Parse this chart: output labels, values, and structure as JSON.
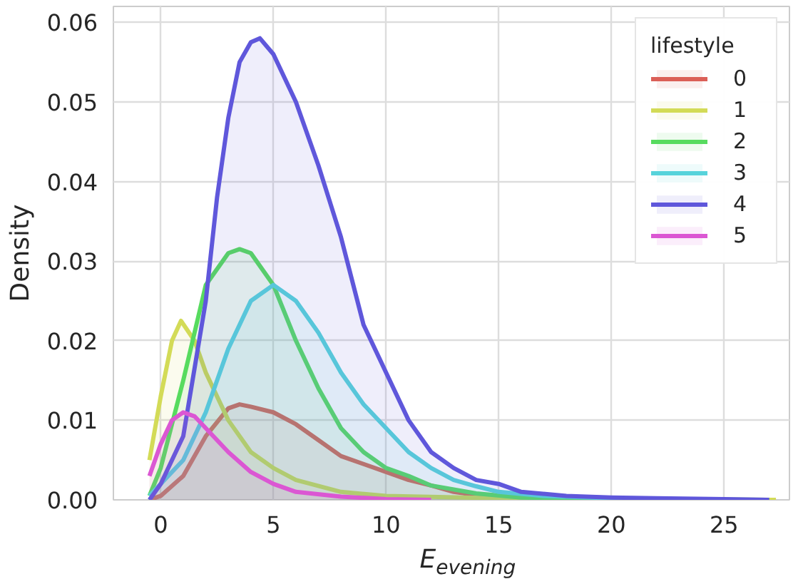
{
  "chart_data": {
    "type": "area",
    "xlabel": "E$_{evening}$",
    "ylabel": "Density",
    "legend_title": "lifestyle",
    "xlim": [
      -2.1,
      27.9
    ],
    "ylim": [
      0,
      0.062
    ],
    "xticks": [
      0,
      5,
      10,
      15,
      20,
      25
    ],
    "yticks": [
      {
        "value": 0,
        "label": "0.00"
      },
      0.01,
      0.02,
      0.03,
      0.04,
      0.05,
      0.06
    ],
    "grid": true,
    "legend": "top right",
    "series": [
      {
        "name": "0",
        "color": "#db5f57",
        "x": [
          -0.5,
          0,
          1,
          2,
          3,
          3.5,
          4,
          5,
          6,
          7,
          8,
          9,
          10,
          11,
          12,
          13,
          14,
          16,
          20,
          25
        ],
        "values": [
          0,
          0.0005,
          0.003,
          0.008,
          0.0115,
          0.012,
          0.0117,
          0.011,
          0.0095,
          0.0075,
          0.0055,
          0.0045,
          0.0035,
          0.0025,
          0.0018,
          0.001,
          0.0006,
          0.0002,
          0.0001,
          0
        ]
      },
      {
        "name": "1",
        "color": "#d3db57",
        "x": [
          -0.5,
          0,
          0.5,
          0.9,
          1.5,
          2,
          3,
          4,
          5,
          6,
          8,
          10,
          15,
          20,
          27.3
        ],
        "values": [
          0.005,
          0.013,
          0.02,
          0.0225,
          0.02,
          0.016,
          0.01,
          0.006,
          0.004,
          0.0025,
          0.001,
          0.0005,
          0.0002,
          0.0001,
          0
        ]
      },
      {
        "name": "2",
        "color": "#57db5f",
        "x": [
          -0.5,
          0,
          1,
          2,
          3,
          3.5,
          4,
          5,
          6,
          7,
          8,
          9,
          10,
          11,
          12,
          14,
          16,
          20,
          27
        ],
        "values": [
          0.0005,
          0.004,
          0.015,
          0.027,
          0.031,
          0.0315,
          0.031,
          0.027,
          0.02,
          0.014,
          0.009,
          0.006,
          0.004,
          0.003,
          0.0018,
          0.0008,
          0.0003,
          0.0001,
          0
        ]
      },
      {
        "name": "3",
        "color": "#57d3db",
        "x": [
          -0.5,
          0,
          1,
          2,
          3,
          4,
          5,
          6,
          7,
          8,
          9,
          10,
          11,
          12,
          13,
          14,
          15,
          17,
          20,
          25
        ],
        "values": [
          0.0005,
          0.002,
          0.005,
          0.011,
          0.019,
          0.025,
          0.027,
          0.025,
          0.021,
          0.016,
          0.012,
          0.009,
          0.006,
          0.004,
          0.0025,
          0.0017,
          0.001,
          0.0005,
          0.0002,
          0
        ]
      },
      {
        "name": "4",
        "color": "#5f57db",
        "x": [
          -0.5,
          0,
          1,
          2,
          2.5,
          3,
          3.5,
          4,
          4.4,
          5,
          6,
          7,
          8,
          9,
          10,
          11,
          12,
          13,
          14,
          15,
          16,
          18,
          20,
          22,
          25,
          27
        ],
        "values": [
          0,
          0.002,
          0.008,
          0.025,
          0.038,
          0.048,
          0.055,
          0.0575,
          0.058,
          0.056,
          0.05,
          0.042,
          0.033,
          0.022,
          0.016,
          0.01,
          0.006,
          0.004,
          0.0025,
          0.002,
          0.001,
          0.0005,
          0.0003,
          0.0002,
          0.0001,
          0
        ]
      },
      {
        "name": "5",
        "color": "#db57d3",
        "x": [
          -0.5,
          0,
          0.5,
          1,
          1.5,
          2,
          3,
          4,
          5,
          6,
          8,
          10,
          12
        ],
        "values": [
          0.003,
          0.007,
          0.01,
          0.011,
          0.0105,
          0.009,
          0.006,
          0.0035,
          0.002,
          0.001,
          0.0004,
          0.0001,
          0
        ]
      }
    ]
  }
}
